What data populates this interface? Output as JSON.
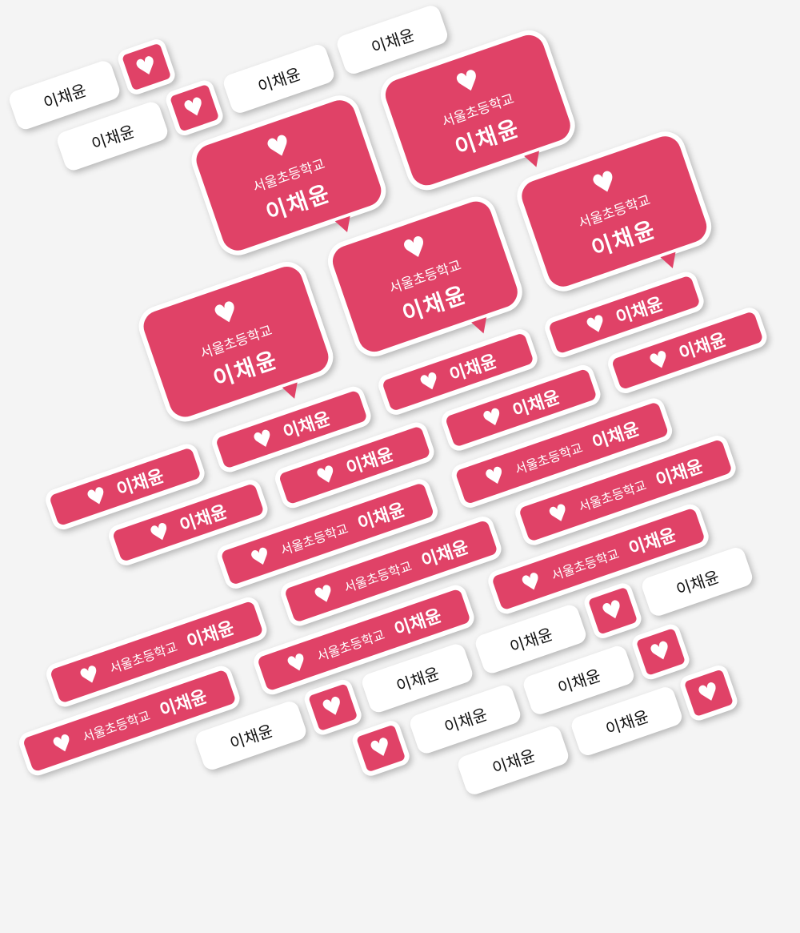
{
  "sticker": {
    "school": "서울초등학교",
    "name": "이채윤",
    "heart_icon": "heart-icon",
    "heart_glyph": "♥"
  },
  "colors": {
    "brand": "#e04267",
    "white": "#ffffff",
    "background": "#f4f4f4"
  }
}
